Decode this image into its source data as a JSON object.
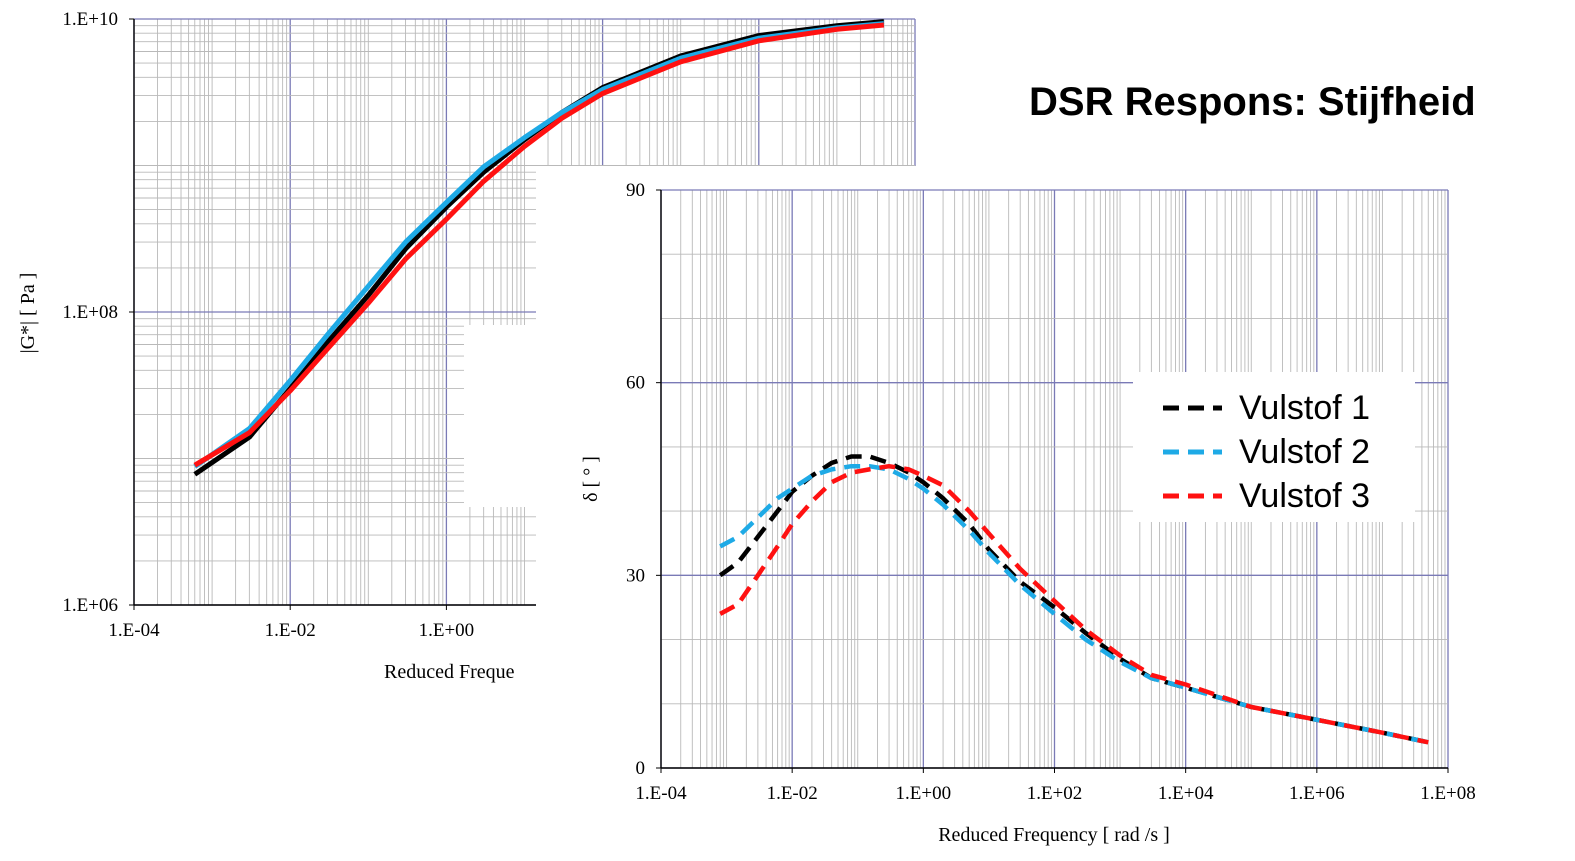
{
  "slide": {
    "title": "DSR Respons: Stijfheid"
  },
  "colors": {
    "vulstof_1": "#000000",
    "vulstof_2": "#1EAAE6",
    "vulstof_3": "#FF1111",
    "major_grid": "#7A7AB6",
    "minor_grid": "#B9B9B9",
    "axis": "#000000"
  },
  "chart_data": [
    {
      "type": "line",
      "id": "modulus",
      "title": "",
      "xlabel": "Reduced Freque",
      "ylabel": "|G*| [ Pa ]",
      "x_scale": "log",
      "y_scale": "log",
      "xlim": [
        0.0001,
        1000000
      ],
      "ylim": [
        1000000,
        10000000000
      ],
      "x_ticks": [
        "1.E-04",
        "1.E-02",
        "1.E+00",
        "1.E+"
      ],
      "y_ticks": [
        "1.E+06",
        "1.E+08",
        "1.E+10"
      ],
      "grid": true,
      "partially_covered_by_second_chart": true,
      "x": [
        0.0006,
        0.003,
        0.01,
        0.03,
        0.1,
        0.3,
        1,
        3,
        10,
        30,
        100,
        1000,
        10000,
        100000,
        400000
      ],
      "series": [
        {
          "name": "Vulstof 1",
          "color": "#000000",
          "style": "solid",
          "values": [
            7800000,
            14000000,
            30000000,
            62000000,
            130000000,
            270000000,
            520000000,
            900000000,
            1500000000,
            2300000000,
            3400000000,
            5600000000,
            7700000000,
            9000000000,
            9600000000
          ]
        },
        {
          "name": "Vulstof 2",
          "color": "#1EAAE6",
          "style": "solid",
          "values": [
            8800000,
            16000000,
            34000000,
            70000000,
            150000000,
            300000000,
            560000000,
            980000000,
            1550000000,
            2300000000,
            3300000000,
            5400000000,
            7400000000,
            8700000000,
            9300000000
          ]
        },
        {
          "name": "Vulstof 3",
          "color": "#FF1111",
          "style": "solid",
          "values": [
            9000000,
            15000000,
            29000000,
            56000000,
            115000000,
            230000000,
            430000000,
            780000000,
            1350000000,
            2100000000,
            3100000000,
            5100000000,
            7100000000,
            8500000000,
            9100000000
          ]
        }
      ]
    },
    {
      "type": "line",
      "id": "phase",
      "title": "",
      "xlabel": "Reduced Frequency [ rad /s ]",
      "ylabel": "δ [ ° ]",
      "x_scale": "log",
      "y_scale": "linear",
      "xlim": [
        0.0001,
        100000000
      ],
      "ylim": [
        0,
        90
      ],
      "x_ticks": [
        "1.E-04",
        "1.E-02",
        "1.E+00",
        "1.E+02",
        "1.E+04",
        "1.E+06",
        "1.E+08"
      ],
      "y_ticks": [
        "0",
        "30",
        "60",
        "90"
      ],
      "grid": true,
      "legend": "upper-right",
      "x": [
        0.0008,
        0.0015,
        0.003,
        0.006,
        0.01,
        0.02,
        0.04,
        0.08,
        0.15,
        0.3,
        0.6,
        1,
        2,
        5,
        10,
        30,
        100,
        300,
        1000,
        3000,
        10000,
        100000,
        1000000,
        10000000,
        50000000
      ],
      "series": [
        {
          "name": "Vulstof 1",
          "color": "#000000",
          "style": "dashed",
          "values": [
            30.0,
            32.0,
            36.0,
            40.0,
            43.0,
            45.5,
            47.5,
            48.5,
            48.5,
            47.5,
            46.0,
            44.5,
            42.0,
            38.0,
            34.0,
            29.0,
            25.0,
            21.0,
            17.0,
            14.0,
            12.5,
            9.5,
            7.5,
            5.5,
            4.0
          ]
        },
        {
          "name": "Vulstof 2",
          "color": "#1EAAE6",
          "style": "dashed",
          "values": [
            34.5,
            36.0,
            39.0,
            42.0,
            43.5,
            45.5,
            46.5,
            47.0,
            47.0,
            46.5,
            45.0,
            43.5,
            41.0,
            37.0,
            33.5,
            28.5,
            24.0,
            20.0,
            16.5,
            14.0,
            12.5,
            9.5,
            7.5,
            5.5,
            4.0
          ]
        },
        {
          "name": "Vulstof 3",
          "color": "#FF1111",
          "style": "dashed",
          "values": [
            24.0,
            25.5,
            30.0,
            34.5,
            38.0,
            41.5,
            44.5,
            46.0,
            46.5,
            47.0,
            46.5,
            45.5,
            44.0,
            40.0,
            36.5,
            31.0,
            26.0,
            21.5,
            17.5,
            14.5,
            13.0,
            9.5,
            7.5,
            5.5,
            4.0
          ]
        }
      ]
    }
  ]
}
